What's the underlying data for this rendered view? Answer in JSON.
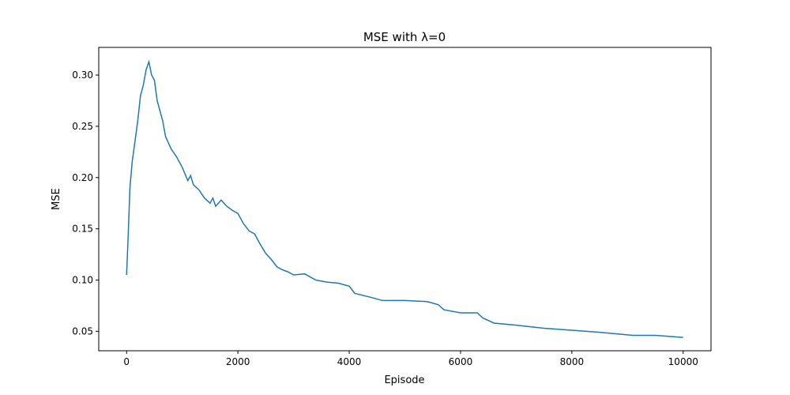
{
  "chart_data": {
    "type": "line",
    "title": "MSE with λ=0",
    "x_label": "Episode",
    "y_label": "MSE",
    "x": [
      0,
      30,
      60,
      100,
      150,
      200,
      250,
      300,
      350,
      400,
      450,
      500,
      550,
      600,
      650,
      700,
      800,
      900,
      1000,
      1100,
      1150,
      1200,
      1300,
      1400,
      1500,
      1550,
      1600,
      1700,
      1800,
      1900,
      2000,
      2100,
      2200,
      2300,
      2400,
      2500,
      2600,
      2700,
      2800,
      2900,
      3000,
      3200,
      3400,
      3600,
      3800,
      4000,
      4100,
      4400,
      4600,
      5000,
      5400,
      5600,
      5700,
      6000,
      6300,
      6400,
      6600,
      7000,
      7500,
      8000,
      8500,
      8900,
      9100,
      9500,
      10000
    ],
    "series": [
      {
        "name": "MSE",
        "color": "#1f77b4",
        "values": [
          0.105,
          0.145,
          0.19,
          0.215,
          0.235,
          0.255,
          0.28,
          0.29,
          0.305,
          0.313,
          0.3,
          0.295,
          0.275,
          0.265,
          0.255,
          0.24,
          0.228,
          0.22,
          0.21,
          0.197,
          0.202,
          0.193,
          0.188,
          0.18,
          0.175,
          0.18,
          0.172,
          0.178,
          0.172,
          0.168,
          0.165,
          0.155,
          0.148,
          0.145,
          0.135,
          0.126,
          0.12,
          0.113,
          0.11,
          0.108,
          0.105,
          0.106,
          0.1,
          0.098,
          0.097,
          0.094,
          0.087,
          0.083,
          0.08,
          0.08,
          0.079,
          0.076,
          0.071,
          0.068,
          0.068,
          0.063,
          0.058,
          0.056,
          0.053,
          0.051,
          0.049,
          0.047,
          0.046,
          0.046,
          0.044
        ]
      }
    ],
    "xlim": [
      -500,
      10500
    ],
    "ylim": [
      0.031,
      0.327
    ],
    "xticks": [
      0,
      2000,
      4000,
      6000,
      8000,
      10000
    ],
    "yticks": [
      0.05,
      {
        "value": 0.1,
        "label": "0.10"
      },
      0.15,
      {
        "value": 0.2,
        "label": "0.20"
      },
      0.25,
      {
        "value": 0.3,
        "label": "0.30"
      }
    ],
    "grid": false
  }
}
